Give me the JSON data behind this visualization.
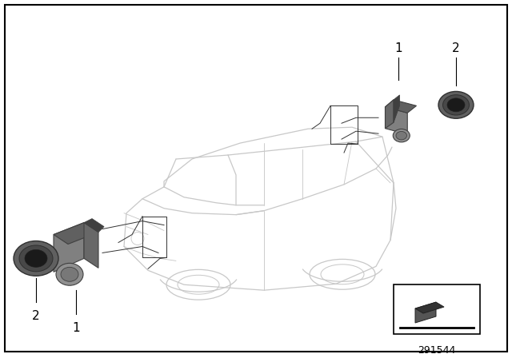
{
  "background_color": "#ffffff",
  "car_color": "#c8c8c8",
  "car_lw": 0.9,
  "sensor_face": "#808080",
  "sensor_top": "#606060",
  "sensor_side": "#707070",
  "sensor_dark": "#404040",
  "ring_outer": "#555555",
  "ring_inner": "#888888",
  "ring_hole": "#1a1a1a",
  "leader_color": "#333333",
  "leader_lw": 0.7,
  "label_color": "#000000",
  "part_number": "291544",
  "fig_width": 6.4,
  "fig_height": 4.48
}
